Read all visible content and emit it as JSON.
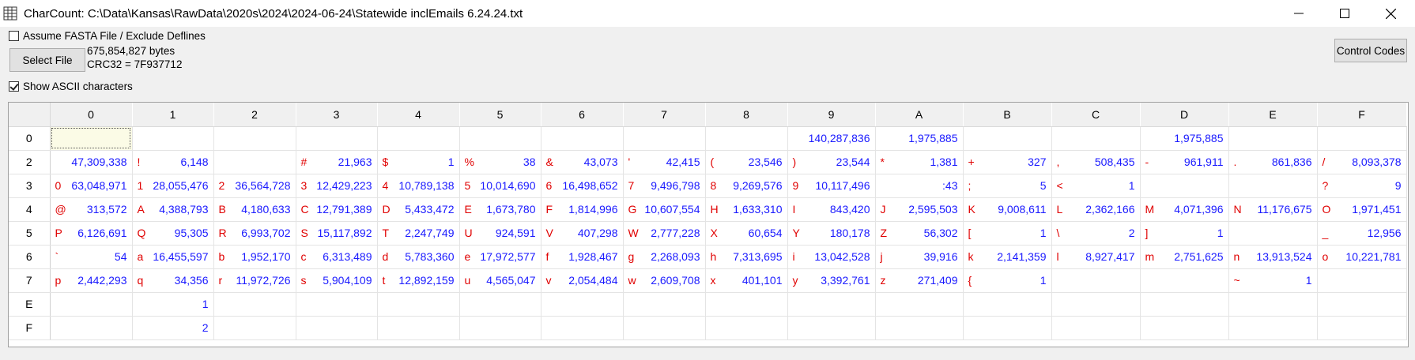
{
  "window": {
    "title": "CharCount:  C:\\Data\\Kansas\\RawData\\2020s\\2024\\2024-06-24\\Statewide inclEmails 6.24.24.txt"
  },
  "controls": {
    "fasta_label": "Assume FASTA File / Exclude Deflines",
    "fasta_checked": false,
    "select_file_label": "Select File",
    "file_size": "675,854,827 bytes",
    "crc32": "CRC32 = 7F937712",
    "show_ascii_label": "Show ASCII characters",
    "show_ascii_checked": true,
    "control_codes_label": "Control Codes"
  },
  "colors": {
    "char": "#e00000",
    "count": "#1a1aff"
  },
  "grid": {
    "columns": [
      "0",
      "1",
      "2",
      "3",
      "4",
      "5",
      "6",
      "7",
      "8",
      "9",
      "A",
      "B",
      "C",
      "D",
      "E",
      "F"
    ],
    "rows": [
      {
        "label": "0",
        "cells": [
          {
            "ch": "",
            "n": ""
          },
          {
            "ch": "",
            "n": ""
          },
          {
            "ch": "",
            "n": ""
          },
          {
            "ch": "",
            "n": ""
          },
          {
            "ch": "",
            "n": ""
          },
          {
            "ch": "",
            "n": ""
          },
          {
            "ch": "",
            "n": ""
          },
          {
            "ch": "",
            "n": ""
          },
          {
            "ch": "",
            "n": ""
          },
          {
            "ch": "",
            "n": "140,287,836"
          },
          {
            "ch": "",
            "n": "1,975,885"
          },
          {
            "ch": "",
            "n": ""
          },
          {
            "ch": "",
            "n": ""
          },
          {
            "ch": "",
            "n": "1,975,885"
          },
          {
            "ch": "",
            "n": ""
          },
          {
            "ch": "",
            "n": ""
          }
        ]
      },
      {
        "label": "2",
        "cells": [
          {
            "ch": "",
            "n": "47,309,338"
          },
          {
            "ch": "!",
            "n": "6,148"
          },
          {
            "ch": "",
            "n": ""
          },
          {
            "ch": "#",
            "n": "21,963"
          },
          {
            "ch": "$",
            "n": "1"
          },
          {
            "ch": "%",
            "n": "38"
          },
          {
            "ch": "&",
            "n": "43,073"
          },
          {
            "ch": "'",
            "n": "42,415"
          },
          {
            "ch": "(",
            "n": "23,546"
          },
          {
            "ch": ")",
            "n": "23,544"
          },
          {
            "ch": "*",
            "n": "1,381"
          },
          {
            "ch": "+",
            "n": "327"
          },
          {
            "ch": ",",
            "n": "508,435"
          },
          {
            "ch": "-",
            "n": "961,911"
          },
          {
            "ch": ".",
            "n": "861,836"
          },
          {
            "ch": "/",
            "n": "8,093,378"
          }
        ]
      },
      {
        "label": "3",
        "cells": [
          {
            "ch": "0",
            "n": "63,048,971"
          },
          {
            "ch": "1",
            "n": "28,055,476"
          },
          {
            "ch": "2",
            "n": "36,564,728"
          },
          {
            "ch": "3",
            "n": "12,429,223"
          },
          {
            "ch": "4",
            "n": "10,789,138"
          },
          {
            "ch": "5",
            "n": "10,014,690"
          },
          {
            "ch": "6",
            "n": "16,498,652"
          },
          {
            "ch": "7",
            "n": "9,496,798"
          },
          {
            "ch": "8",
            "n": "9,269,576"
          },
          {
            "ch": "9",
            "n": "10,117,496"
          },
          {
            "ch": "",
            "n": ":43"
          },
          {
            "ch": ";",
            "n": "5"
          },
          {
            "ch": "<",
            "n": "1"
          },
          {
            "ch": "",
            "n": ""
          },
          {
            "ch": "",
            "n": ""
          },
          {
            "ch": "?",
            "n": "9"
          }
        ]
      },
      {
        "label": "4",
        "cells": [
          {
            "ch": "@",
            "n": "313,572"
          },
          {
            "ch": "A",
            "n": "4,388,793"
          },
          {
            "ch": "B",
            "n": "4,180,633"
          },
          {
            "ch": "C",
            "n": "12,791,389"
          },
          {
            "ch": "D",
            "n": "5,433,472"
          },
          {
            "ch": "E",
            "n": "1,673,780"
          },
          {
            "ch": "F",
            "n": "1,814,996"
          },
          {
            "ch": "G",
            "n": "10,607,554"
          },
          {
            "ch": "H",
            "n": "1,633,310"
          },
          {
            "ch": "I",
            "n": "843,420"
          },
          {
            "ch": "J",
            "n": "2,595,503"
          },
          {
            "ch": "K",
            "n": "9,008,611"
          },
          {
            "ch": "L",
            "n": "2,362,166"
          },
          {
            "ch": "M",
            "n": "4,071,396"
          },
          {
            "ch": "N",
            "n": "11,176,675"
          },
          {
            "ch": "O",
            "n": "1,971,451"
          }
        ]
      },
      {
        "label": "5",
        "cells": [
          {
            "ch": "P",
            "n": "6,126,691"
          },
          {
            "ch": "Q",
            "n": "95,305"
          },
          {
            "ch": "R",
            "n": "6,993,702"
          },
          {
            "ch": "S",
            "n": "15,117,892"
          },
          {
            "ch": "T",
            "n": "2,247,749"
          },
          {
            "ch": "U",
            "n": "924,591"
          },
          {
            "ch": "V",
            "n": "407,298"
          },
          {
            "ch": "W",
            "n": "2,777,228"
          },
          {
            "ch": "X",
            "n": "60,654"
          },
          {
            "ch": "Y",
            "n": "180,178"
          },
          {
            "ch": "Z",
            "n": "56,302"
          },
          {
            "ch": "[",
            "n": "1"
          },
          {
            "ch": "\\",
            "n": "2"
          },
          {
            "ch": "]",
            "n": "1"
          },
          {
            "ch": "",
            "n": ""
          },
          {
            "ch": "_",
            "n": "12,956"
          }
        ]
      },
      {
        "label": "6",
        "cells": [
          {
            "ch": "`",
            "n": "54"
          },
          {
            "ch": "a",
            "n": "16,455,597"
          },
          {
            "ch": "b",
            "n": "1,952,170"
          },
          {
            "ch": "c",
            "n": "6,313,489"
          },
          {
            "ch": "d",
            "n": "5,783,360"
          },
          {
            "ch": "e",
            "n": "17,972,577"
          },
          {
            "ch": "f",
            "n": "1,928,467"
          },
          {
            "ch": "g",
            "n": "2,268,093"
          },
          {
            "ch": "h",
            "n": "7,313,695"
          },
          {
            "ch": "i",
            "n": "13,042,528"
          },
          {
            "ch": "j",
            "n": "39,916"
          },
          {
            "ch": "k",
            "n": "2,141,359"
          },
          {
            "ch": "l",
            "n": "8,927,417"
          },
          {
            "ch": "m",
            "n": "2,751,625"
          },
          {
            "ch": "n",
            "n": "13,913,524"
          },
          {
            "ch": "o",
            "n": "10,221,781"
          }
        ]
      },
      {
        "label": "7",
        "cells": [
          {
            "ch": "p",
            "n": "2,442,293"
          },
          {
            "ch": "q",
            "n": "34,356"
          },
          {
            "ch": "r",
            "n": "11,972,726"
          },
          {
            "ch": "s",
            "n": "5,904,109"
          },
          {
            "ch": "t",
            "n": "12,892,159"
          },
          {
            "ch": "u",
            "n": "4,565,047"
          },
          {
            "ch": "v",
            "n": "2,054,484"
          },
          {
            "ch": "w",
            "n": "2,609,708"
          },
          {
            "ch": "x",
            "n": "401,101"
          },
          {
            "ch": "y",
            "n": "3,392,761"
          },
          {
            "ch": "z",
            "n": "271,409"
          },
          {
            "ch": "{",
            "n": "1"
          },
          {
            "ch": "",
            "n": ""
          },
          {
            "ch": "",
            "n": ""
          },
          {
            "ch": "~",
            "n": "1"
          },
          {
            "ch": "",
            "n": ""
          }
        ]
      },
      {
        "label": "E",
        "cells": [
          {
            "ch": "",
            "n": ""
          },
          {
            "ch": "",
            "n": "1"
          },
          {
            "ch": "",
            "n": ""
          },
          {
            "ch": "",
            "n": ""
          },
          {
            "ch": "",
            "n": ""
          },
          {
            "ch": "",
            "n": ""
          },
          {
            "ch": "",
            "n": ""
          },
          {
            "ch": "",
            "n": ""
          },
          {
            "ch": "",
            "n": ""
          },
          {
            "ch": "",
            "n": ""
          },
          {
            "ch": "",
            "n": ""
          },
          {
            "ch": "",
            "n": ""
          },
          {
            "ch": "",
            "n": ""
          },
          {
            "ch": "",
            "n": ""
          },
          {
            "ch": "",
            "n": ""
          },
          {
            "ch": "",
            "n": ""
          }
        ]
      },
      {
        "label": "F",
        "cells": [
          {
            "ch": "",
            "n": ""
          },
          {
            "ch": "",
            "n": "2"
          },
          {
            "ch": "",
            "n": ""
          },
          {
            "ch": "",
            "n": ""
          },
          {
            "ch": "",
            "n": ""
          },
          {
            "ch": "",
            "n": ""
          },
          {
            "ch": "",
            "n": ""
          },
          {
            "ch": "",
            "n": ""
          },
          {
            "ch": "",
            "n": ""
          },
          {
            "ch": "",
            "n": ""
          },
          {
            "ch": "",
            "n": ""
          },
          {
            "ch": "",
            "n": ""
          },
          {
            "ch": "",
            "n": ""
          },
          {
            "ch": "",
            "n": ""
          },
          {
            "ch": "",
            "n": ""
          },
          {
            "ch": "",
            "n": ""
          }
        ]
      }
    ]
  }
}
